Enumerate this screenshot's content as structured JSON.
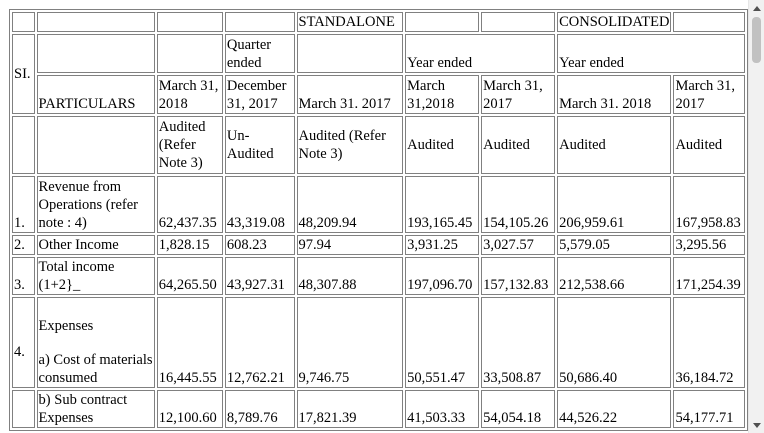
{
  "header": {
    "standalone": "STANDALONE",
    "consolidated": "CONSOLIDATED",
    "si": "SI.",
    "quarter_ended": "Quarter ended",
    "year_ended_standalone": "Year ended",
    "year_ended_consolidated": "Year ended",
    "particulars": "PARTICULARS",
    "dates": [
      "March 31, 2018",
      "December 31, 2017",
      "March 31. 2017",
      "March 31,2018",
      "March 31, 2017",
      "March 31. 2018",
      "March 31, 2017"
    ],
    "audit": [
      "Audited (Refer Note 3)",
      "Un-Audited",
      "Audited (Refer Note 3)",
      "Audited",
      "Audited",
      "Audited",
      "Audited"
    ]
  },
  "rows": [
    {
      "no": "1.",
      "label": "Revenue from Operations (refer note : 4)",
      "values": [
        "62,437.35",
        "43,319.08",
        "48,209.94",
        "193,165.45",
        "154,105.26",
        "206,959.61",
        "167,958.83"
      ]
    },
    {
      "no": "2.",
      "label": "Other Income",
      "values": [
        "1,828.15",
        "608.23",
        "97.94",
        "3,931.25",
        "3,027.57",
        "5,579.05",
        "3,295.56"
      ]
    },
    {
      "no": "3.",
      "label": "Total income (1+2}_",
      "values": [
        "64,265.50",
        "43,927.31",
        "48,307.88",
        "197,096.70",
        "157,132.83",
        "212,538.66",
        "171,254.39"
      ]
    },
    {
      "no": "4.",
      "label_heading": "Expenses",
      "label": "a) Cost of materials consumed",
      "values": [
        "16,445.55",
        "12,762.21",
        "9,746.75",
        "50,551.47",
        "33,508.87",
        "50,686.40",
        "36,184.72"
      ]
    },
    {
      "no": "",
      "label": "b) Sub contract Expenses",
      "values": [
        "12,100.60",
        "8,789.76",
        "17,821.39",
        "41,503.33",
        "54,054.18",
        "44,526.22",
        "54,177.71"
      ]
    }
  ]
}
